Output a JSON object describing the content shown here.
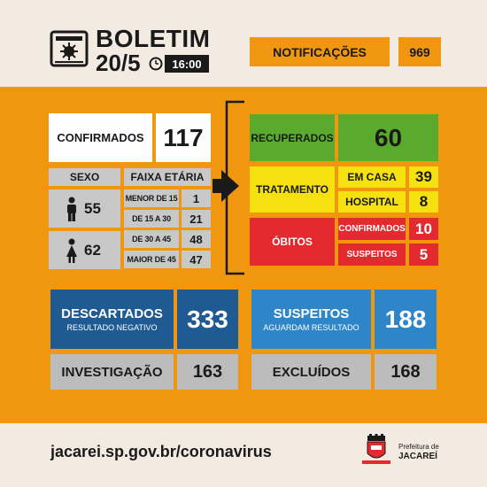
{
  "header": {
    "title": "BOLETIM",
    "date": "20/5",
    "time": "16:00",
    "notifications_label": "NOTIFICAÇÕES",
    "notifications_value": "969"
  },
  "confirmed": {
    "label": "CONFIRMADOS",
    "value": "117"
  },
  "sexo": {
    "label": "SEXO",
    "male": "55",
    "female": "62"
  },
  "faixa": {
    "label": "FAIXA ETÁRIA",
    "rows": [
      {
        "label": "MENOR DE 15",
        "value": "1"
      },
      {
        "label": "DE 15 A 30",
        "value": "21"
      },
      {
        "label": "DE 30 A 45",
        "value": "48"
      },
      {
        "label": "MAIOR DE 45",
        "value": "47"
      }
    ]
  },
  "recuperados": {
    "label": "RECUPERADOS",
    "value": "60"
  },
  "tratamento": {
    "label": "TRATAMENTO",
    "em_casa_label": "EM CASA",
    "em_casa_value": "39",
    "hospital_label": "HOSPITAL",
    "hospital_value": "8"
  },
  "obitos": {
    "label": "ÓBITOS",
    "confirmados_label": "CONFIRMADOS",
    "confirmados_value": "10",
    "suspeitos_label": "SUSPEITOS",
    "suspeitos_value": "5"
  },
  "descartados": {
    "label": "DESCARTADOS",
    "sublabel": "RESULTADO NEGATIVO",
    "value": "333"
  },
  "suspeitos": {
    "label": "SUSPEITOS",
    "sublabel": "AGUARDAM RESULTADO",
    "value": "188"
  },
  "investigacao": {
    "label": "INVESTIGAÇÃO",
    "value": "163"
  },
  "excluidos": {
    "label": "EXCLUÍDOS",
    "value": "168"
  },
  "footer": {
    "url": "jacarei.sp.gov.br/coronavirus",
    "prefeitura_line1": "Prefeitura de",
    "prefeitura_line2": "JACAREÍ"
  },
  "colors": {
    "orange": "#f0960f",
    "green": "#5aaa2d",
    "yellow": "#f4e10f",
    "red": "#e32b2f",
    "dark_blue": "#1f5a93",
    "light_blue": "#2e86c8",
    "grey": "#bcbcbc"
  }
}
